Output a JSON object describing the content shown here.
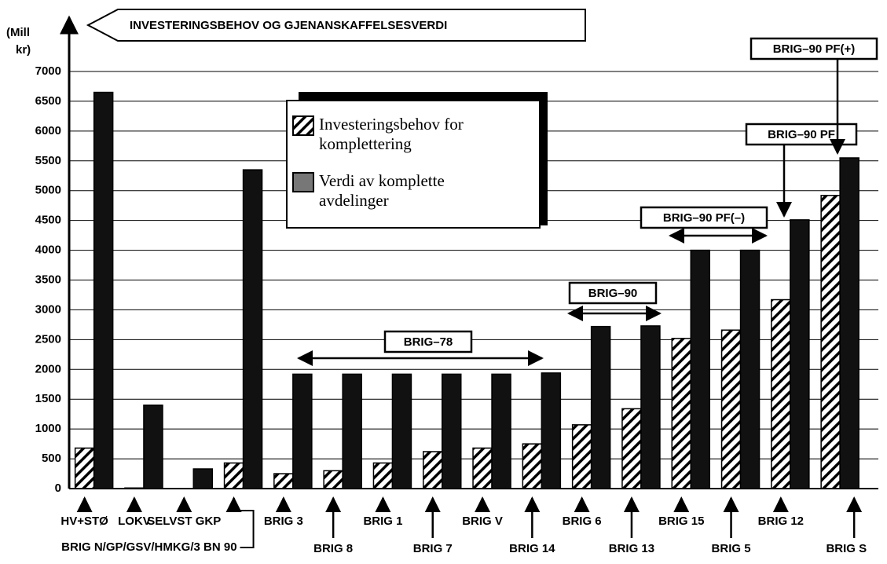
{
  "chart_data": {
    "type": "bar",
    "title": "INVESTERINGSBEHOV OG GJENANSKAFFELSESVERDI",
    "y_label": [
      "(Mill",
      "kr)"
    ],
    "categories": [
      "HV+STØ",
      "LOKV",
      "SELVST GKP",
      "BRIG N/GP/GSV/HMKG/3 BN 90",
      "BRIG 3",
      "BRIG 8",
      "BRIG 1",
      "BRIG 7",
      "BRIG V",
      "BRIG 14",
      "BRIG 6",
      "BRIG 13",
      "BRIG 15",
      "BRIG 5",
      "BRIG 12",
      "BRIG S"
    ],
    "series": [
      {
        "name": "Investeringsbehov for komplettering",
        "color": "#ffffff",
        "hatch": true,
        "values": [
          680,
          10,
          0,
          430,
          250,
          300,
          430,
          620,
          680,
          750,
          1070,
          1340,
          2520,
          2660,
          3170,
          4920
        ]
      },
      {
        "name": "Verdi av komplette avdelinger",
        "color": "#111111",
        "hatch": false,
        "values": [
          6650,
          1400,
          330,
          5350,
          1920,
          1920,
          1920,
          1920,
          1920,
          1940,
          2720,
          2730,
          4000,
          4000,
          4510,
          5550
        ]
      }
    ],
    "ylim": [
      0,
      7000
    ],
    "yticks": [
      0,
      500,
      1000,
      1500,
      2000,
      2500,
      3000,
      3500,
      4000,
      4500,
      5000,
      5500,
      6000,
      6500,
      7000
    ],
    "grid": true,
    "annotations": [
      "BRIG–78",
      "BRIG–90",
      "BRIG–90 PF(–)",
      "BRIG–90 PF",
      "BRIG–90 PF(+)"
    ]
  }
}
